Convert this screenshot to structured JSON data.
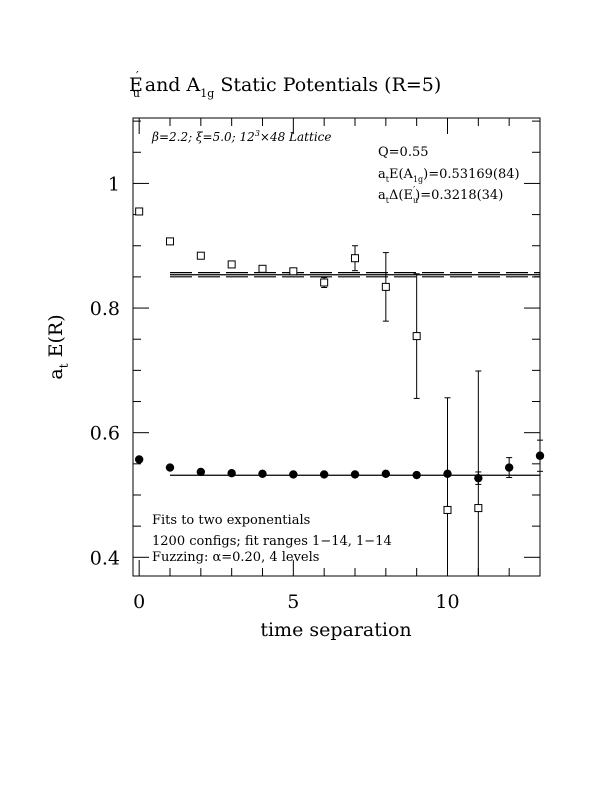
{
  "chart_data": {
    "type": "scatter",
    "title": {
      "p1": "E",
      "p1sub": "u",
      "p1sup": "′",
      "p2": "  and A",
      "p2sub": "1g",
      "p3": " Static Potentials (R=5)"
    },
    "xlabel": "time separation",
    "ylabel": {
      "main": "a",
      "sub": "t",
      "rest": " E(R)"
    },
    "xlim": [
      -0.2,
      13.0
    ],
    "ylim": [
      0.37,
      1.105
    ],
    "x_ticks_major": [
      0,
      5,
      10
    ],
    "x_tick_labels": [
      "0",
      "5",
      "10"
    ],
    "y_ticks_major": [
      0.4,
      0.6,
      0.8,
      1.0
    ],
    "y_tick_labels": [
      "0.4",
      "0.6",
      "0.8",
      "1"
    ],
    "grid": false,
    "annotations": {
      "params": {
        "beta": "β=2.2;  ξ=5.0;  12",
        "sup": "3",
        "rest": "×48 Lattice"
      },
      "q": "Q=0.55",
      "a1g_fit": {
        "a": "a",
        "asub": "t",
        "mid": "E(A",
        "sub": "1g",
        "val": ")=0.53169(84)"
      },
      "eu_fit": {
        "a": "a",
        "asub": "t",
        "mid": "Δ(E",
        "sub": "u",
        "sup": "′",
        "val": ")=0.3218(34)"
      },
      "fits": "Fits to two exponentials",
      "configs": "1200 configs; fit ranges 1−14, 1−14",
      "fuzzing": "Fuzzing: α=0.20, 4 levels"
    },
    "series": [
      {
        "marker": "filled-circle",
        "x": [
          0,
          1,
          2,
          3,
          4,
          5,
          6,
          7,
          8,
          9,
          10,
          11,
          12,
          13
        ],
        "y": [
          0.557,
          0.544,
          0.537,
          0.535,
          0.534,
          0.533,
          0.533,
          0.533,
          0.534,
          0.532,
          0.534,
          0.527,
          0.544,
          0.563
        ],
        "yerr": [
          0.003,
          0.003,
          0.003,
          0.003,
          0.003,
          0.003,
          0.003,
          0.003,
          0.003,
          0.003,
          0.004,
          0.01,
          0.016,
          0.025
        ]
      },
      {
        "marker": "open-square",
        "x": [
          0,
          1,
          2,
          3,
          4,
          5,
          6,
          7,
          8,
          9,
          10,
          11
        ],
        "y": [
          0.955,
          0.907,
          0.884,
          0.87,
          0.863,
          0.859,
          0.841,
          0.88,
          0.834,
          0.755,
          0.476,
          0.479
        ],
        "yerr": [
          0.002,
          0.002,
          0.002,
          0.003,
          0.003,
          0.004,
          0.008,
          0.02,
          0.055,
          0.1,
          0.18,
          0.22
        ]
      }
    ],
    "fit_lines": [
      {
        "style": "solid",
        "y": 0.5317,
        "x_range": [
          1,
          13
        ]
      },
      {
        "style": "solid",
        "y": 0.8535,
        "x_range": [
          1,
          13
        ]
      },
      {
        "style": "dashed",
        "y": 0.8569,
        "x_range": [
          1,
          13
        ]
      },
      {
        "style": "dashed",
        "y": 0.8501,
        "x_range": [
          1,
          13
        ]
      }
    ]
  }
}
